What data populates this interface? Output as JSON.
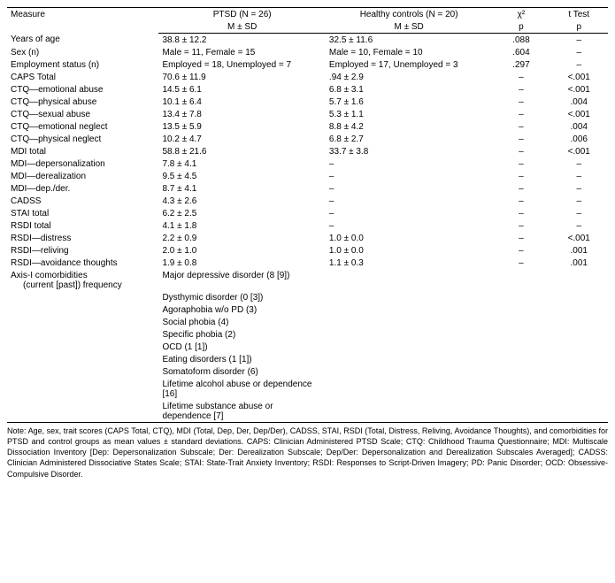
{
  "header": {
    "measure": "Measure",
    "ptsd_top": "PTSD (N = 26)",
    "ptsd_sub": "M ± SD",
    "hc_top": "Healthy controls (N = 20)",
    "hc_sub": "M ± SD",
    "chi_top": "χ²",
    "chi_sub": "p",
    "t_top": "t Test",
    "t_sub": "p"
  },
  "rows": [
    {
      "measure": "Years of age",
      "ptsd": "38.8 ± 12.2",
      "hc": "32.5 ± 11.6",
      "chi": ".088",
      "t": "–"
    },
    {
      "measure": "Sex (n)",
      "ptsd": "Male = 11, Female = 15",
      "hc": "Male = 10, Female = 10",
      "chi": ".604",
      "t": "–"
    },
    {
      "measure": "Employment status (n)",
      "ptsd": "Employed = 18, Unemployed = 7",
      "hc": "Employed = 17, Unemployed = 3",
      "chi": ".297",
      "t": "–"
    },
    {
      "measure": "CAPS Total",
      "ptsd": "70.6 ± 11.9",
      "hc": ".94 ± 2.9",
      "chi": "–",
      "t": "<.001"
    },
    {
      "measure": "CTQ—emotional abuse",
      "ptsd": "14.5 ± 6.1",
      "hc": "6.8 ± 3.1",
      "chi": "–",
      "t": "<.001"
    },
    {
      "measure": "CTQ—physical abuse",
      "ptsd": "10.1 ± 6.4",
      "hc": "5.7 ± 1.6",
      "chi": "–",
      "t": ".004"
    },
    {
      "measure": "CTQ—sexual abuse",
      "ptsd": "13.4 ± 7.8",
      "hc": "5.3 ± 1.1",
      "chi": "–",
      "t": "<.001"
    },
    {
      "measure": "CTQ—emotional neglect",
      "ptsd": "13.5 ± 5.9",
      "hc": "8.8 ± 4.2",
      "chi": "–",
      "t": ".004"
    },
    {
      "measure": "CTQ—physical neglect",
      "ptsd": "10.2 ± 4.7",
      "hc": "6.8 ± 2.7",
      "chi": "–",
      "t": ".006"
    },
    {
      "measure": "MDI total",
      "ptsd": "58.8 ± 21.6",
      "hc": "33.7 ± 3.8",
      "chi": "–",
      "t": "<.001"
    },
    {
      "measure": "MDI—depersonalization",
      "ptsd": "7.8 ± 4.1",
      "hc": "–",
      "chi": "–",
      "t": "–"
    },
    {
      "measure": "MDI—derealization",
      "ptsd": "9.5 ± 4.5",
      "hc": "–",
      "chi": "–",
      "t": "–"
    },
    {
      "measure": "MDI—dep./der.",
      "ptsd": "8.7 ± 4.1",
      "hc": "–",
      "chi": "–",
      "t": "–"
    },
    {
      "measure": "CADSS",
      "ptsd": "4.3 ± 2.6",
      "hc": "–",
      "chi": "–",
      "t": "–"
    },
    {
      "measure": "STAI total",
      "ptsd": "6.2 ± 2.5",
      "hc": "–",
      "chi": "–",
      "t": "–"
    },
    {
      "measure": "RSDI total",
      "ptsd": "4.1 ± 1.8",
      "hc": "–",
      "chi": "–",
      "t": "–"
    },
    {
      "measure": "RSDI—distress",
      "ptsd": "2.2 ± 0.9",
      "hc": "1.0 ± 0.0",
      "chi": "–",
      "t": "<.001"
    },
    {
      "measure": "RSDI—reliving",
      "ptsd": "2.0 ± 1.0",
      "hc": "1.0 ± 0.0",
      "chi": "–",
      "t": ".001"
    },
    {
      "measure": "RSDI—avoidance thoughts",
      "ptsd": "1.9 ± 0.8",
      "hc": "1.1 ± 0.3",
      "chi": "–",
      "t": ".001"
    }
  ],
  "comorbid_label_1": "Axis-I comorbidities",
  "comorbid_label_2": "(current [past]) frequency",
  "comorbid": [
    "Major depressive disorder (8 [9])",
    "Dysthymic disorder (0 [3])",
    "Agoraphobia w/o PD (3)",
    "Social phobia (4)",
    "Specific phobia (2)",
    "OCD (1 [1])",
    "Eating disorders (1 [1])",
    "Somatoform disorder (6)",
    "Lifetime alcohol abuse or dependence [16]",
    "Lifetime substance abuse or dependence [7]"
  ],
  "note": "Note: Age, sex, trait scores (CAPS Total, CTQ), MDI (Total, Dep, Der, Dep/Der), CADSS, STAI, RSDI (Total, Distress, Reliving, Avoidance Thoughts), and comorbidities for PTSD and control groups as mean values ± standard deviations. CAPS: Clinician Administered PTSD Scale; CTQ: Childhood Trauma Questionnaire; MDI: Multiscale Dissociation Inventory [Dep: Depersonalization Subscale; Der: Derealization Subscale; Dep/Der: Depersonalization and Derealization Subscales Averaged]; CADSS: Clinician Administered Dissociative States Scale; STAI: State-Trait Anxiety Inventory; RSDI: Responses to Script-Driven Imagery; PD: Panic Disorder; OCD: Obsessive-Compulsive Disorder."
}
